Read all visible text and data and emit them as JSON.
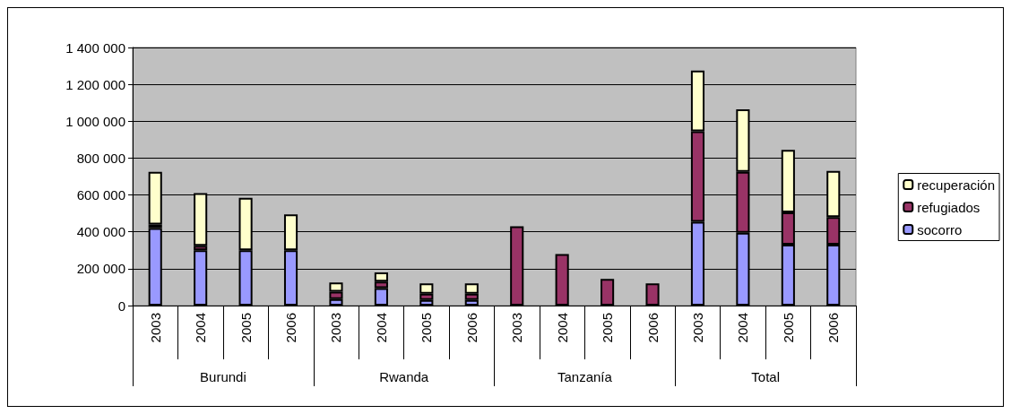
{
  "chart_data": {
    "type": "bar",
    "stacked": true,
    "categories": [
      "2003",
      "2004",
      "2005",
      "2006",
      "2003",
      "2004",
      "2005",
      "2006",
      "2003",
      "2004",
      "2005",
      "2006",
      "2003",
      "2004",
      "2005",
      "2006"
    ],
    "annotations": [
      "Burundi",
      "Rwanda",
      "Tanzanía",
      "Total"
    ],
    "series": [
      {
        "name": "socorro",
        "color": "#9999ff",
        "values": [
          420000,
          300000,
          300000,
          300000,
          35000,
          95000,
          30000,
          30000,
          null,
          null,
          null,
          null,
          455000,
          395000,
          330000,
          330000
        ]
      },
      {
        "name": "refugiados",
        "color": "#993366",
        "values": [
          20000,
          25000,
          null,
          null,
          40000,
          35000,
          35000,
          35000,
          430000,
          280000,
          145000,
          120000,
          490000,
          330000,
          175000,
          150000
        ]
      },
      {
        "name": "recuperación",
        "color": "#ffffcc",
        "values": [
          285000,
          285000,
          285000,
          195000,
          50000,
          50000,
          55000,
          55000,
          null,
          null,
          null,
          null,
          330000,
          340000,
          340000,
          250000
        ]
      }
    ],
    "ylim": [
      0,
      1400000
    ],
    "yticks": [
      0,
      200000,
      400000,
      600000,
      800000,
      1000000,
      1200000,
      1400000
    ],
    "grid": "y",
    "legend": "right"
  }
}
